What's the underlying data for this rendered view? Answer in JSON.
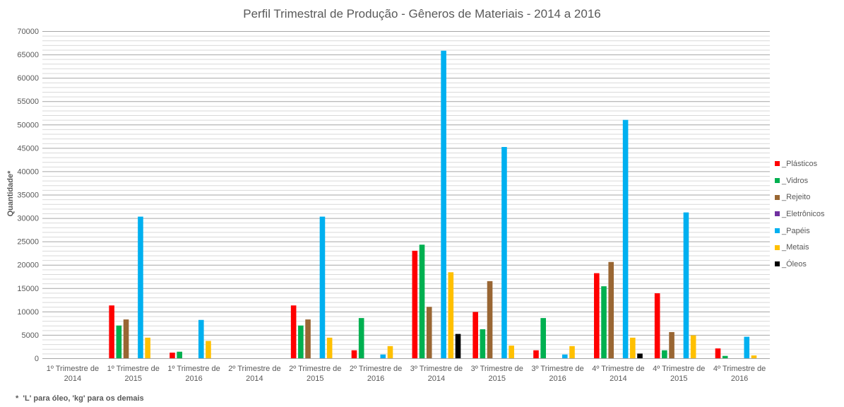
{
  "chart_data": {
    "type": "bar",
    "title": "Perfil Trimestral de Produção - Gêneros de Materiais - 2014 a 2016",
    "ylabel": "Quantidade*",
    "xlabel": "",
    "ylim": [
      0,
      70000
    ],
    "yticks": [
      0,
      5000,
      10000,
      15000,
      20000,
      25000,
      30000,
      35000,
      40000,
      45000,
      50000,
      55000,
      60000,
      65000,
      70000
    ],
    "minor_grid_step": 1000,
    "grid": true,
    "legend_position": "right",
    "categories": [
      [
        "1º Trimestre de",
        "2014"
      ],
      [
        "1º Trimestre de",
        "2015"
      ],
      [
        "1º Trimestre de",
        "2016"
      ],
      [
        "2º Trimestre de",
        "2014"
      ],
      [
        "2º Trimestre de",
        "2015"
      ],
      [
        "2º Trimestre de",
        "2016"
      ],
      [
        "3º Trimestre de",
        "2014"
      ],
      [
        "3º Trimestre de",
        "2015"
      ],
      [
        "3º Trimestre de",
        "2016"
      ],
      [
        "4º Trimestre de",
        "2014"
      ],
      [
        "4º Trimestre de",
        "2015"
      ],
      [
        "4º Trimestre de",
        "2016"
      ]
    ],
    "series": [
      {
        "name": "_Plásticos",
        "color": "#ff0000",
        "values": [
          0,
          11300,
          1200,
          0,
          11300,
          1700,
          23000,
          9900,
          1700,
          18200,
          13900,
          2100
        ]
      },
      {
        "name": "_Vidros",
        "color": "#00b050",
        "values": [
          0,
          7000,
          1400,
          0,
          7000,
          8600,
          24300,
          6200,
          8600,
          15400,
          1700,
          500
        ]
      },
      {
        "name": "_Rejeito",
        "color": "#996633",
        "values": [
          0,
          8300,
          0,
          0,
          8300,
          0,
          11000,
          16500,
          0,
          20600,
          5600,
          0
        ]
      },
      {
        "name": "_Eletrônicos",
        "color": "#7030a0",
        "values": [
          0,
          0,
          0,
          0,
          0,
          0,
          0,
          0,
          0,
          0,
          0,
          0
        ]
      },
      {
        "name": "_Papéis",
        "color": "#00b0f0",
        "values": [
          0,
          30300,
          8200,
          0,
          30300,
          800,
          65800,
          45200,
          800,
          51000,
          31200,
          4600
        ]
      },
      {
        "name": "_Metais",
        "color": "#ffc000",
        "values": [
          0,
          4400,
          3700,
          0,
          4400,
          2600,
          18400,
          2700,
          2600,
          4400,
          4900,
          600
        ]
      },
      {
        "name": "_Óleos",
        "color": "#000000",
        "values": [
          0,
          0,
          0,
          0,
          0,
          0,
          5200,
          0,
          0,
          1000,
          0,
          0
        ]
      }
    ]
  },
  "footnote": {
    "marker": "*",
    "text": "'L' para óleo, 'kg' para os demais"
  }
}
